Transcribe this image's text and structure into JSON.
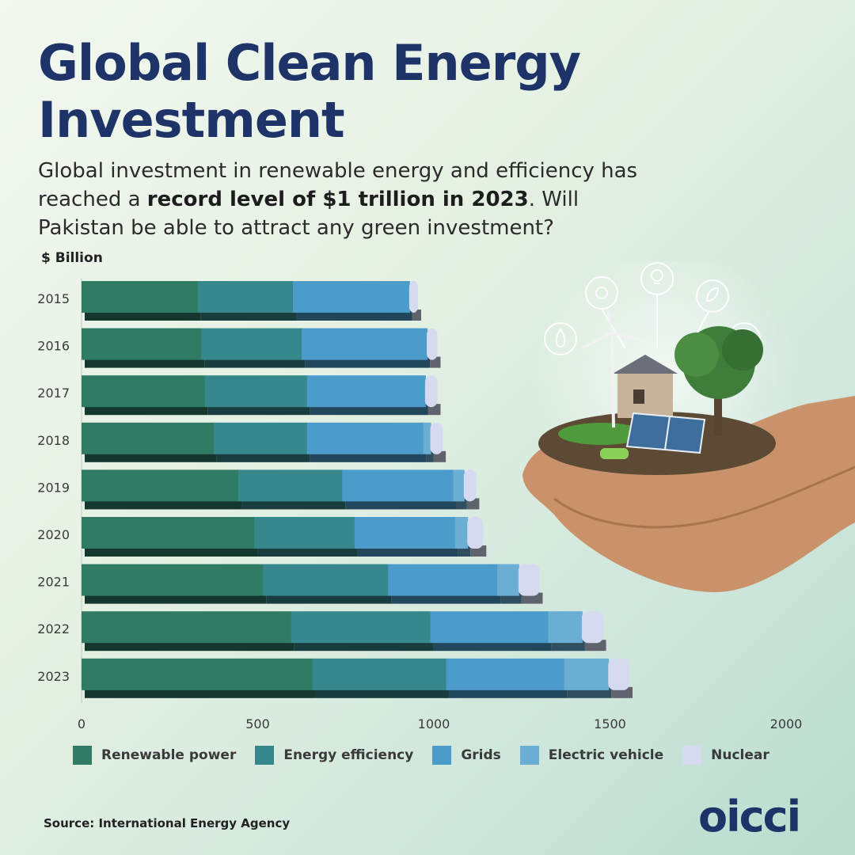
{
  "header": {
    "title": "Global Clean Energy Investment",
    "subtitle_pre": "Global investment in renewable energy and efficiency has reached a ",
    "subtitle_bold": "record level of $1 trillion in 2023",
    "subtitle_post": ". Will Pakistan be able to attract any green investment?"
  },
  "footer": {
    "source": "Source: International Energy Agency",
    "logo_text": "OICCI"
  },
  "chart_data": {
    "type": "bar",
    "orientation": "horizontal",
    "stacked": true,
    "unit_label": "$ Billion",
    "categories": [
      "2015",
      "2016",
      "2017",
      "2018",
      "2019",
      "2020",
      "2021",
      "2022",
      "2023"
    ],
    "series": [
      {
        "name": "Renewable power",
        "color": "#2f7b63",
        "values": [
          330,
          340,
          350,
          375,
          445,
          490,
          515,
          595,
          655
        ]
      },
      {
        "name": "Energy efficiency",
        "color": "#37888c",
        "values": [
          270,
          285,
          290,
          265,
          295,
          285,
          355,
          395,
          380
        ]
      },
      {
        "name": "Grids",
        "color": "#4c9ccb",
        "values": [
          330,
          355,
          335,
          330,
          315,
          285,
          310,
          335,
          335
        ]
      },
      {
        "name": "Electric vehicle",
        "color": "#6baed4",
        "values": [
          0,
          0,
          0,
          20,
          30,
          35,
          60,
          95,
          125
        ]
      },
      {
        "name": "Nuclear",
        "color": "#d6daf0",
        "values": [
          25,
          30,
          35,
          35,
          35,
          45,
          60,
          60,
          60
        ]
      }
    ],
    "xlim": [
      0,
      2000
    ],
    "xticks": [
      "0",
      "500",
      "1000",
      "1500",
      "2000"
    ],
    "grid": false,
    "legend_position": "bottom"
  }
}
